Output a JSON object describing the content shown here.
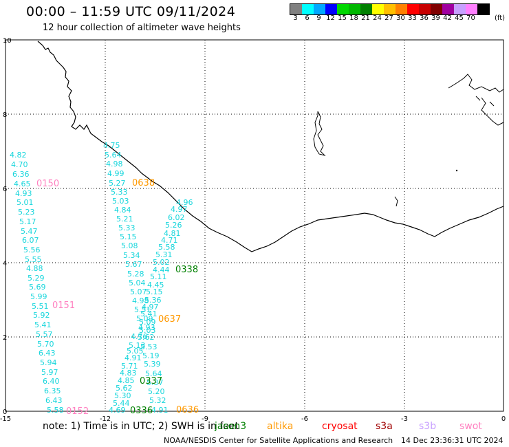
{
  "header": {
    "title": "00:00 – 11:59 UTC 09/11/2024",
    "subtitle": "12 hour collection of altimeter wave heights"
  },
  "color_scale": {
    "unit": "(ft)",
    "items": [
      {
        "label": "3",
        "color": "#808080"
      },
      {
        "label": "6",
        "color": "#00ffff"
      },
      {
        "label": "9",
        "color": "#00a8ff"
      },
      {
        "label": "12",
        "color": "#0000ff"
      },
      {
        "label": "15",
        "color": "#00d800"
      },
      {
        "label": "18",
        "color": "#00b800"
      },
      {
        "label": "21",
        "color": "#008000"
      },
      {
        "label": "24",
        "color": "#ffff00"
      },
      {
        "label": "27",
        "color": "#ffc000"
      },
      {
        "label": "30",
        "color": "#ff8000"
      },
      {
        "label": "33",
        "color": "#ff0000"
      },
      {
        "label": "36",
        "color": "#c80000"
      },
      {
        "label": "39",
        "color": "#800000"
      },
      {
        "label": "42",
        "color": "#a000a0"
      },
      {
        "label": "45",
        "color": "#c8a0ff"
      },
      {
        "label": "70",
        "color": "#ff80ff"
      },
      {
        "label": "",
        "color": "#000000"
      }
    ]
  },
  "axes": {
    "x_ticks": [
      "-15",
      "-12",
      "-9",
      "-6",
      "-3",
      "0"
    ],
    "y_ticks": [
      "0",
      "2",
      "4",
      "6",
      "8",
      "10"
    ]
  },
  "tracks": [
    {
      "values": [
        "4.82",
        "4.70",
        "6.36",
        "4.65",
        "4.93",
        "5.01",
        "5.23",
        "5.17",
        "5.47",
        "6.07",
        "5.56",
        "5.55",
        "4.88",
        "5.29",
        "5.69",
        "5.99",
        "5.51",
        "5.92",
        "5.41",
        "5.57",
        "5.70",
        "6.43",
        "5.94",
        "5.97",
        "6.40",
        "6.35",
        "6.43",
        "5.58"
      ]
    },
    {
      "values": [
        "4.75",
        "5.64",
        "4.98",
        "4.99",
        "5.27",
        "5.33",
        "5.03",
        "4.84",
        "5.21",
        "5.33",
        "5.15",
        "5.08",
        "5.34",
        "5.67",
        "5.28",
        "5.04",
        "5.07",
        "4.98",
        "5.51",
        "5.09",
        "4.93",
        "4.76",
        "5.13",
        "5.05",
        "4.91",
        "5.71",
        "4.83",
        "4.85",
        "5.62",
        "5.30",
        "5.44",
        "4.69"
      ]
    },
    {
      "values": [
        "4.96",
        "4.97",
        "6.02",
        "5.26",
        "4.81",
        "4.71",
        "5.58",
        "5.31",
        "5.02",
        "4.44",
        "5.11",
        "4.45",
        "5.15",
        "5.36",
        "4.97",
        "5.41",
        "5.09",
        "5.03",
        "5.62",
        "5.53",
        "5.19",
        "5.39",
        "5.64",
        "5.37",
        "5.20",
        "5.32",
        "4.91"
      ]
    }
  ],
  "time_labels": [
    {
      "text": "0150",
      "color": "#ff80c0"
    },
    {
      "text": "0151",
      "color": "#ff80c0"
    },
    {
      "text": "0152",
      "color": "#ff80c0"
    },
    {
      "text": "0638",
      "color": "#ff9900"
    },
    {
      "text": "0637",
      "color": "#ff9900"
    },
    {
      "text": "0636",
      "color": "#ff9900"
    },
    {
      "text": "0338",
      "color": "#008000"
    },
    {
      "text": "0337",
      "color": "#008000"
    },
    {
      "text": "0336",
      "color": "#008000"
    }
  ],
  "footer": {
    "note": "note:  1) Time is in UTC;  2) SWH is in feet",
    "satellites": [
      {
        "name": "jason3",
        "color": "#008000"
      },
      {
        "name": "altika",
        "color": "#ff9900"
      },
      {
        "name": "cryosat",
        "color": "#ff0000"
      },
      {
        "name": "s3a",
        "color": "#a00000"
      },
      {
        "name": "s3b",
        "color": "#c8a0ff"
      },
      {
        "name": "swot",
        "color": "#ff80c0"
      }
    ],
    "org": "NOAA/NESDIS Center for Satellite Applications and Research",
    "timestamp": "14 Dec 23:36:31 UTC 2024"
  }
}
